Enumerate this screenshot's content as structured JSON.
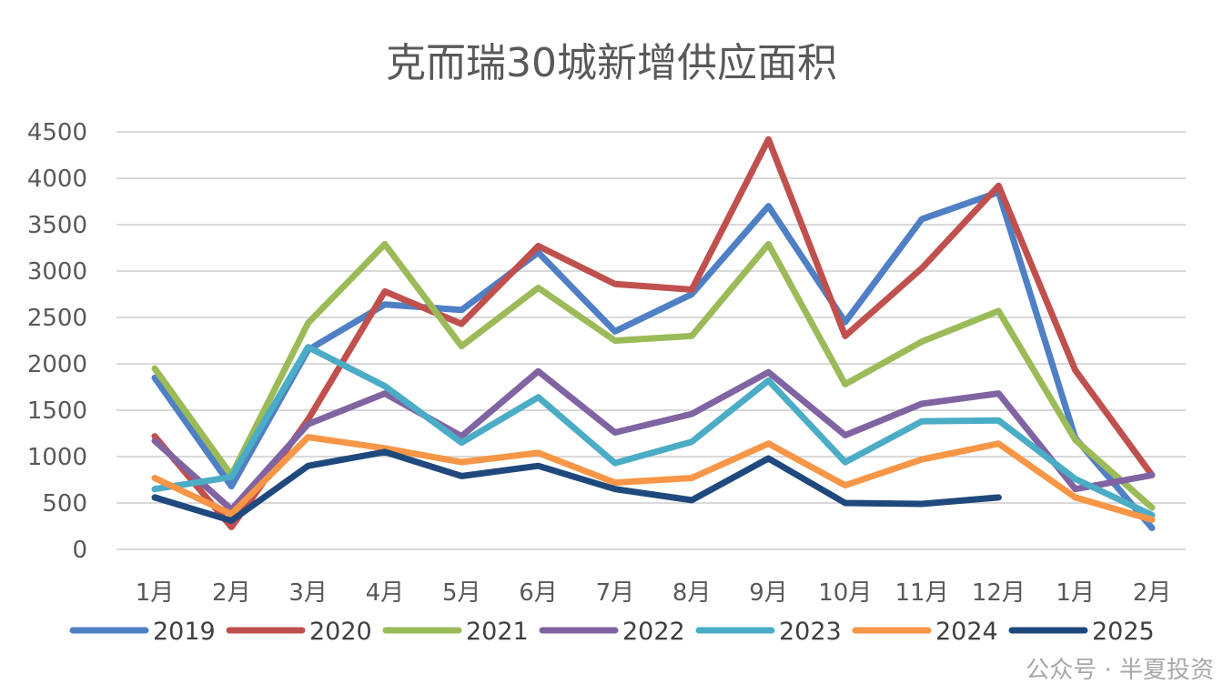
{
  "chart_data": {
    "type": "line",
    "title": "克而瑞30城新增供应面积",
    "xlabel": "",
    "ylabel": "",
    "categories": [
      "1月",
      "2月",
      "3月",
      "4月",
      "5月",
      "6月",
      "7月",
      "8月",
      "9月",
      "10月",
      "11月",
      "12月",
      "1月",
      "2月"
    ],
    "ylim": [
      0,
      4500
    ],
    "yticks": [
      "0",
      "500",
      "1000",
      "1500",
      "2000",
      "2500",
      "3000",
      "3500",
      "4000",
      "4500"
    ],
    "grid": true,
    "legend_position": "bottom",
    "series": [
      {
        "name": "2019",
        "color": "#4f7fc4",
        "values": [
          1850,
          680,
          2150,
          2640,
          2580,
          3200,
          2350,
          2750,
          3700,
          2450,
          3560,
          3850,
          1200,
          230
        ]
      },
      {
        "name": "2020",
        "color": "#c0504d",
        "values": [
          1220,
          240,
          1400,
          2780,
          2430,
          3270,
          2860,
          2800,
          4420,
          2300,
          3030,
          3920,
          1930,
          800
        ]
      },
      {
        "name": "2021",
        "color": "#9bbb59",
        "values": [
          1950,
          800,
          2440,
          3290,
          2190,
          2820,
          2250,
          2300,
          3290,
          1780,
          2240,
          2570,
          1180,
          450
        ]
      },
      {
        "name": "2022",
        "color": "#8064a2",
        "values": [
          1170,
          430,
          1350,
          1680,
          1220,
          1920,
          1260,
          1460,
          1910,
          1230,
          1570,
          1680,
          650,
          800
        ]
      },
      {
        "name": "2023",
        "color": "#4bacc6",
        "values": [
          650,
          780,
          2180,
          1760,
          1150,
          1640,
          930,
          1160,
          1820,
          940,
          1380,
          1390,
          760,
          370
        ]
      },
      {
        "name": "2024",
        "color": "#f79646",
        "values": [
          770,
          380,
          1210,
          1090,
          940,
          1040,
          720,
          770,
          1140,
          690,
          970,
          1140,
          560,
          320
        ]
      },
      {
        "name": "2025",
        "color": "#1f497d",
        "values": [
          560,
          310,
          900,
          1050,
          790,
          900,
          650,
          530,
          980,
          500,
          490,
          560,
          null,
          null
        ]
      }
    ]
  },
  "watermark": "公众号 · 半夏投资"
}
